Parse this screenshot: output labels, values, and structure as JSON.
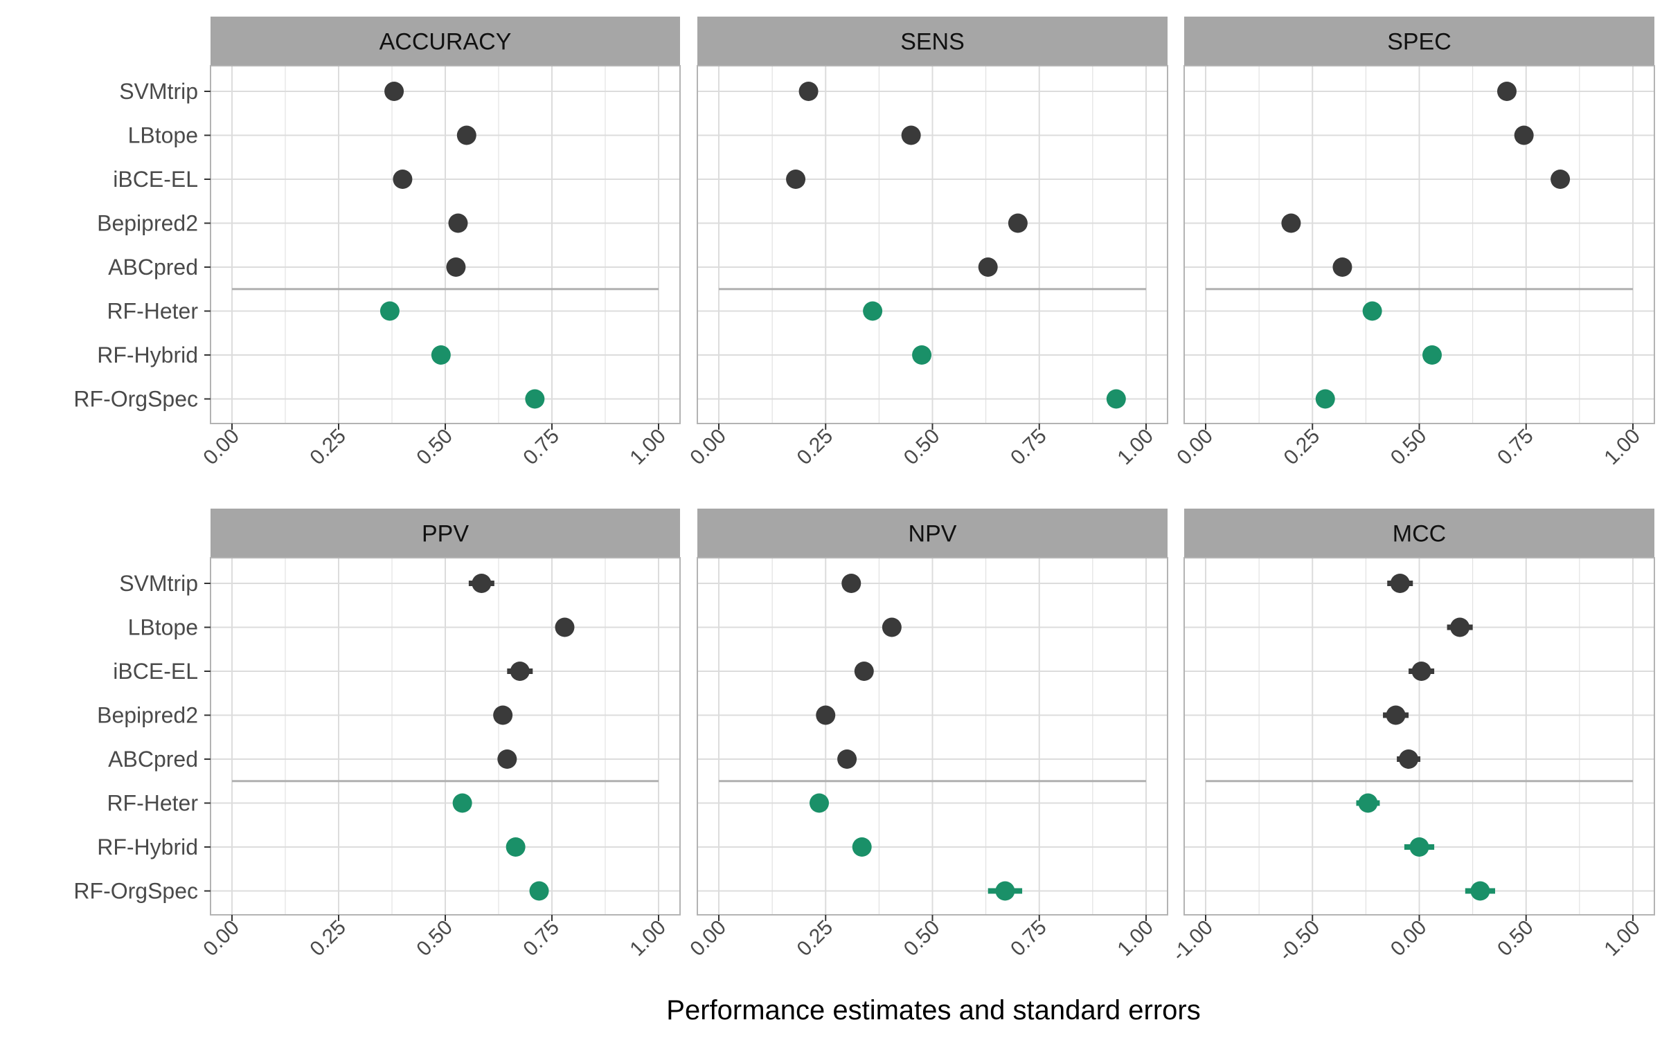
{
  "colors": {
    "strip_background": "#a6a6a6",
    "grid": "#dcdcdc",
    "panel_border": "#b3b3b3",
    "separator": "#b0b0b0",
    "baseline_method": "#3a3a3a",
    "rf_method": "#1a9068",
    "tick_label": "#4a4a4a",
    "axis_title": "#000000"
  },
  "chart_data": {
    "type": "dot-errorbar facet",
    "xlabel": "Performance estimates and standard errors",
    "methods": [
      "SVMtrip",
      "LBtope",
      "iBCE-EL",
      "Bepipred2",
      "ABCpred",
      "RF-Heter",
      "RF-Hybrid",
      "RF-OrgSpec"
    ],
    "rf_methods": [
      "RF-Heter",
      "RF-Hybrid",
      "RF-OrgSpec"
    ],
    "panels": [
      {
        "name": "ACCURACY",
        "xlim": [
          0,
          1
        ],
        "ticks": [
          {
            "v": 0,
            "t": "0.00"
          },
          {
            "v": 0.25,
            "t": "0.25"
          },
          {
            "v": 0.5,
            "t": "0.50"
          },
          {
            "v": 0.75,
            "t": "0.75"
          },
          {
            "v": 1,
            "t": "1.00"
          }
        ],
        "values": [
          0.38,
          0.55,
          0.4,
          0.53,
          0.525,
          0.37,
          0.49,
          0.71
        ],
        "se": [
          0.004,
          0.004,
          0.004,
          0.004,
          0.004,
          0.004,
          0.004,
          0.004
        ]
      },
      {
        "name": "SENS",
        "xlim": [
          0,
          1
        ],
        "ticks": [
          {
            "v": 0,
            "t": "0.00"
          },
          {
            "v": 0.25,
            "t": "0.25"
          },
          {
            "v": 0.5,
            "t": "0.50"
          },
          {
            "v": 0.75,
            "t": "0.75"
          },
          {
            "v": 1,
            "t": "1.00"
          }
        ],
        "values": [
          0.21,
          0.45,
          0.18,
          0.7,
          0.63,
          0.36,
          0.475,
          0.93
        ],
        "se": [
          0.004,
          0.004,
          0.004,
          0.004,
          0.004,
          0.004,
          0.004,
          0.004
        ]
      },
      {
        "name": "SPEC",
        "xlim": [
          0,
          1
        ],
        "ticks": [
          {
            "v": 0,
            "t": "0.00"
          },
          {
            "v": 0.25,
            "t": "0.25"
          },
          {
            "v": 0.5,
            "t": "0.50"
          },
          {
            "v": 0.75,
            "t": "0.75"
          },
          {
            "v": 1,
            "t": "1.00"
          }
        ],
        "values": [
          0.705,
          0.745,
          0.83,
          0.2,
          0.32,
          0.39,
          0.53,
          0.28
        ],
        "se": [
          0.012,
          0.012,
          0.006,
          0.006,
          0.012,
          0.012,
          0.014,
          0.012
        ]
      },
      {
        "name": "PPV",
        "xlim": [
          0,
          1
        ],
        "ticks": [
          {
            "v": 0,
            "t": "0.00"
          },
          {
            "v": 0.25,
            "t": "0.25"
          },
          {
            "v": 0.5,
            "t": "0.50"
          },
          {
            "v": 0.75,
            "t": "0.75"
          },
          {
            "v": 1,
            "t": "1.00"
          }
        ],
        "values": [
          0.585,
          0.78,
          0.675,
          0.635,
          0.645,
          0.54,
          0.665,
          0.72
        ],
        "se": [
          0.03,
          0.006,
          0.03,
          0.006,
          0.006,
          0.006,
          0.006,
          0.006
        ]
      },
      {
        "name": "NPV",
        "xlim": [
          0,
          1
        ],
        "ticks": [
          {
            "v": 0,
            "t": "0.00"
          },
          {
            "v": 0.25,
            "t": "0.25"
          },
          {
            "v": 0.5,
            "t": "0.50"
          },
          {
            "v": 0.75,
            "t": "0.75"
          },
          {
            "v": 1,
            "t": "1.00"
          }
        ],
        "values": [
          0.31,
          0.405,
          0.34,
          0.25,
          0.3,
          0.235,
          0.335,
          0.67
        ],
        "se": [
          0.006,
          0.006,
          0.006,
          0.02,
          0.015,
          0.006,
          0.006,
          0.04
        ]
      },
      {
        "name": "MCC",
        "xlim": [
          -1,
          1
        ],
        "ticks": [
          {
            "v": -1,
            "t": "-1.00"
          },
          {
            "v": -0.5,
            "t": "-0.50"
          },
          {
            "v": 0,
            "t": "0.00"
          },
          {
            "v": 0.5,
            "t": "0.50"
          },
          {
            "v": 1,
            "t": "1.00"
          }
        ],
        "values": [
          -0.09,
          0.19,
          0.01,
          -0.11,
          -0.05,
          -0.24,
          0.0,
          0.285
        ],
        "se": [
          0.06,
          0.06,
          0.06,
          0.06,
          0.055,
          0.055,
          0.07,
          0.07
        ]
      }
    ]
  }
}
